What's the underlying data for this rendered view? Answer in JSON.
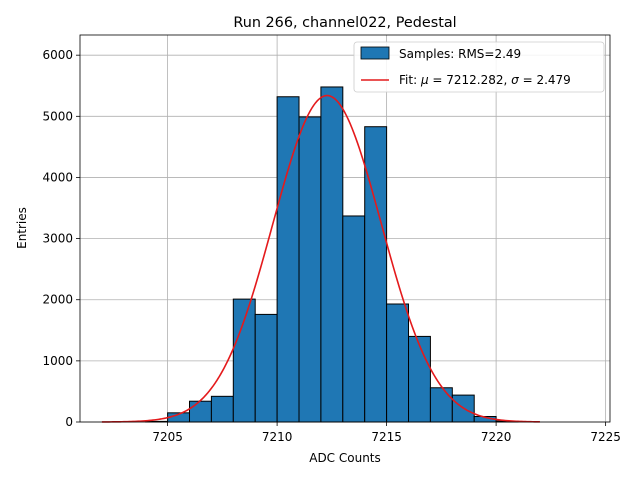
{
  "chart_data": {
    "type": "bar",
    "title": "Run 266, channel022, Pedestal",
    "xlabel": "ADC Counts",
    "ylabel": "Entries",
    "xlim": [
      7201,
      7225.2
    ],
    "ylim": [
      0,
      6330
    ],
    "xticks": [
      7205,
      7210,
      7215,
      7220,
      7225
    ],
    "yticks": [
      0,
      1000,
      2000,
      3000,
      4000,
      5000,
      6000
    ],
    "grid": true,
    "legend_position": "top-right",
    "histogram": {
      "name": "Samples: RMS=2.49",
      "color": "#1f77b4",
      "bin_width": 1,
      "bins": [
        {
          "x0": 7204,
          "count": 10
        },
        {
          "x0": 7205,
          "count": 150
        },
        {
          "x0": 7206,
          "count": 340
        },
        {
          "x0": 7207,
          "count": 420
        },
        {
          "x0": 7208,
          "count": 2010
        },
        {
          "x0": 7209,
          "count": 1760
        },
        {
          "x0": 7210,
          "count": 5320
        },
        {
          "x0": 7211,
          "count": 4990
        },
        {
          "x0": 7212,
          "count": 5480
        },
        {
          "x0": 7213,
          "count": 3370
        },
        {
          "x0": 7214,
          "count": 4830
        },
        {
          "x0": 7215,
          "count": 1930
        },
        {
          "x0": 7216,
          "count": 1400
        },
        {
          "x0": 7217,
          "count": 560
        },
        {
          "x0": 7218,
          "count": 440
        },
        {
          "x0": 7219,
          "count": 90
        },
        {
          "x0": 7220,
          "count": 15
        }
      ]
    },
    "fit": {
      "name_prefix": "Fit: ",
      "mu_label": "μ",
      "mu_value": " = 7212.282, ",
      "sigma_label": "σ",
      "sigma_value": " = 2.479",
      "color": "#e41a1c",
      "mu": 7212.282,
      "sigma": 2.479,
      "amplitude": 5340,
      "x_range": [
        7202,
        7222
      ]
    }
  }
}
